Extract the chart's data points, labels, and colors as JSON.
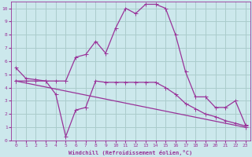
{
  "xlabel": "Windchill (Refroidissement éolien,°C)",
  "background_color": "#cce8ec",
  "grid_color": "#aacccc",
  "line_color": "#993399",
  "xlim": [
    -0.5,
    23.5
  ],
  "ylim": [
    0,
    10.5
  ],
  "xticks": [
    0,
    1,
    2,
    3,
    4,
    5,
    6,
    7,
    8,
    9,
    10,
    11,
    12,
    13,
    14,
    15,
    16,
    17,
    18,
    19,
    20,
    21,
    22,
    23
  ],
  "yticks": [
    0,
    1,
    2,
    3,
    4,
    5,
    6,
    7,
    8,
    9,
    10
  ],
  "line1_x": [
    0,
    1,
    2,
    3,
    4,
    5,
    6,
    7,
    8,
    9,
    10,
    11,
    12,
    13,
    14,
    15,
    16,
    17,
    18,
    19,
    20,
    21,
    22,
    23
  ],
  "line1_y": [
    5.5,
    4.7,
    4.6,
    4.5,
    4.5,
    4.5,
    6.3,
    6.5,
    7.5,
    6.6,
    8.5,
    10.0,
    9.6,
    10.3,
    10.3,
    10.0,
    8.0,
    5.2,
    3.3,
    3.3,
    2.5,
    2.5,
    3.0,
    1.2
  ],
  "line2_x": [
    0,
    1,
    2,
    3,
    4,
    5,
    6,
    7,
    8,
    9,
    10,
    11,
    12,
    13,
    14,
    15,
    16,
    17,
    18,
    19,
    20,
    21,
    22,
    23
  ],
  "line2_y": [
    4.5,
    4.5,
    4.5,
    4.5,
    3.5,
    0.3,
    2.3,
    2.5,
    4.5,
    4.4,
    4.4,
    4.4,
    4.4,
    4.4,
    4.4,
    4.0,
    3.5,
    2.8,
    2.4,
    2.0,
    1.8,
    1.5,
    1.3,
    1.1
  ],
  "line3_x": [
    0,
    23
  ],
  "line3_y": [
    4.5,
    1.0
  ]
}
